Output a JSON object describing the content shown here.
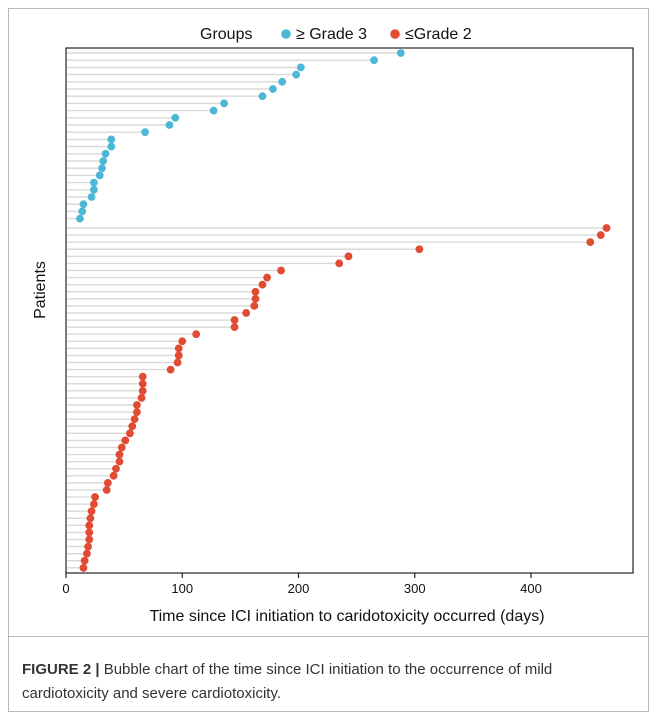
{
  "caption": {
    "label": "FIGURE 2 |",
    "text": " Bubble chart of the time since ICI initiation to the occurrence of mild cardiotoxicity and severe cardiotoxicity."
  },
  "chart_data": {
    "type": "scatter",
    "subtype": "lollipop",
    "title": "",
    "xlabel": "Time since ICI initiation to caridotoxicity occurred (days)",
    "ylabel": "Patients",
    "xlim": [
      0,
      490
    ],
    "x_ticks": [
      0,
      100,
      200,
      300,
      400
    ],
    "grid": false,
    "legend": {
      "title": "Groups",
      "placement": "top",
      "entries": [
        {
          "label": "≥ Grade 3",
          "color": "#4db8d6"
        },
        {
          "label": "≤Grade 2",
          "color": "#e24b33"
        }
      ]
    },
    "series": [
      {
        "name": "≥ Grade 3",
        "color": "#4db8d6",
        "values": [
          288,
          265,
          202,
          198,
          186,
          178,
          169,
          136,
          127,
          94,
          89,
          68,
          39,
          39,
          34,
          32,
          31,
          29,
          24,
          24,
          22,
          15,
          14,
          12
        ]
      },
      {
        "name": "≤Grade 2",
        "color": "#e24b33",
        "values": [
          465,
          460,
          451,
          304,
          243,
          235,
          185,
          173,
          169,
          163,
          163,
          162,
          155,
          145,
          145,
          112,
          100,
          97,
          97,
          96,
          90,
          66,
          66,
          66,
          65,
          61,
          61,
          59,
          57,
          55,
          51,
          48,
          46,
          46,
          43,
          41,
          36,
          35,
          25,
          24,
          22,
          21,
          20,
          20,
          20,
          19,
          18,
          16,
          15
        ]
      }
    ],
    "line_color": "#d9d9d9"
  }
}
